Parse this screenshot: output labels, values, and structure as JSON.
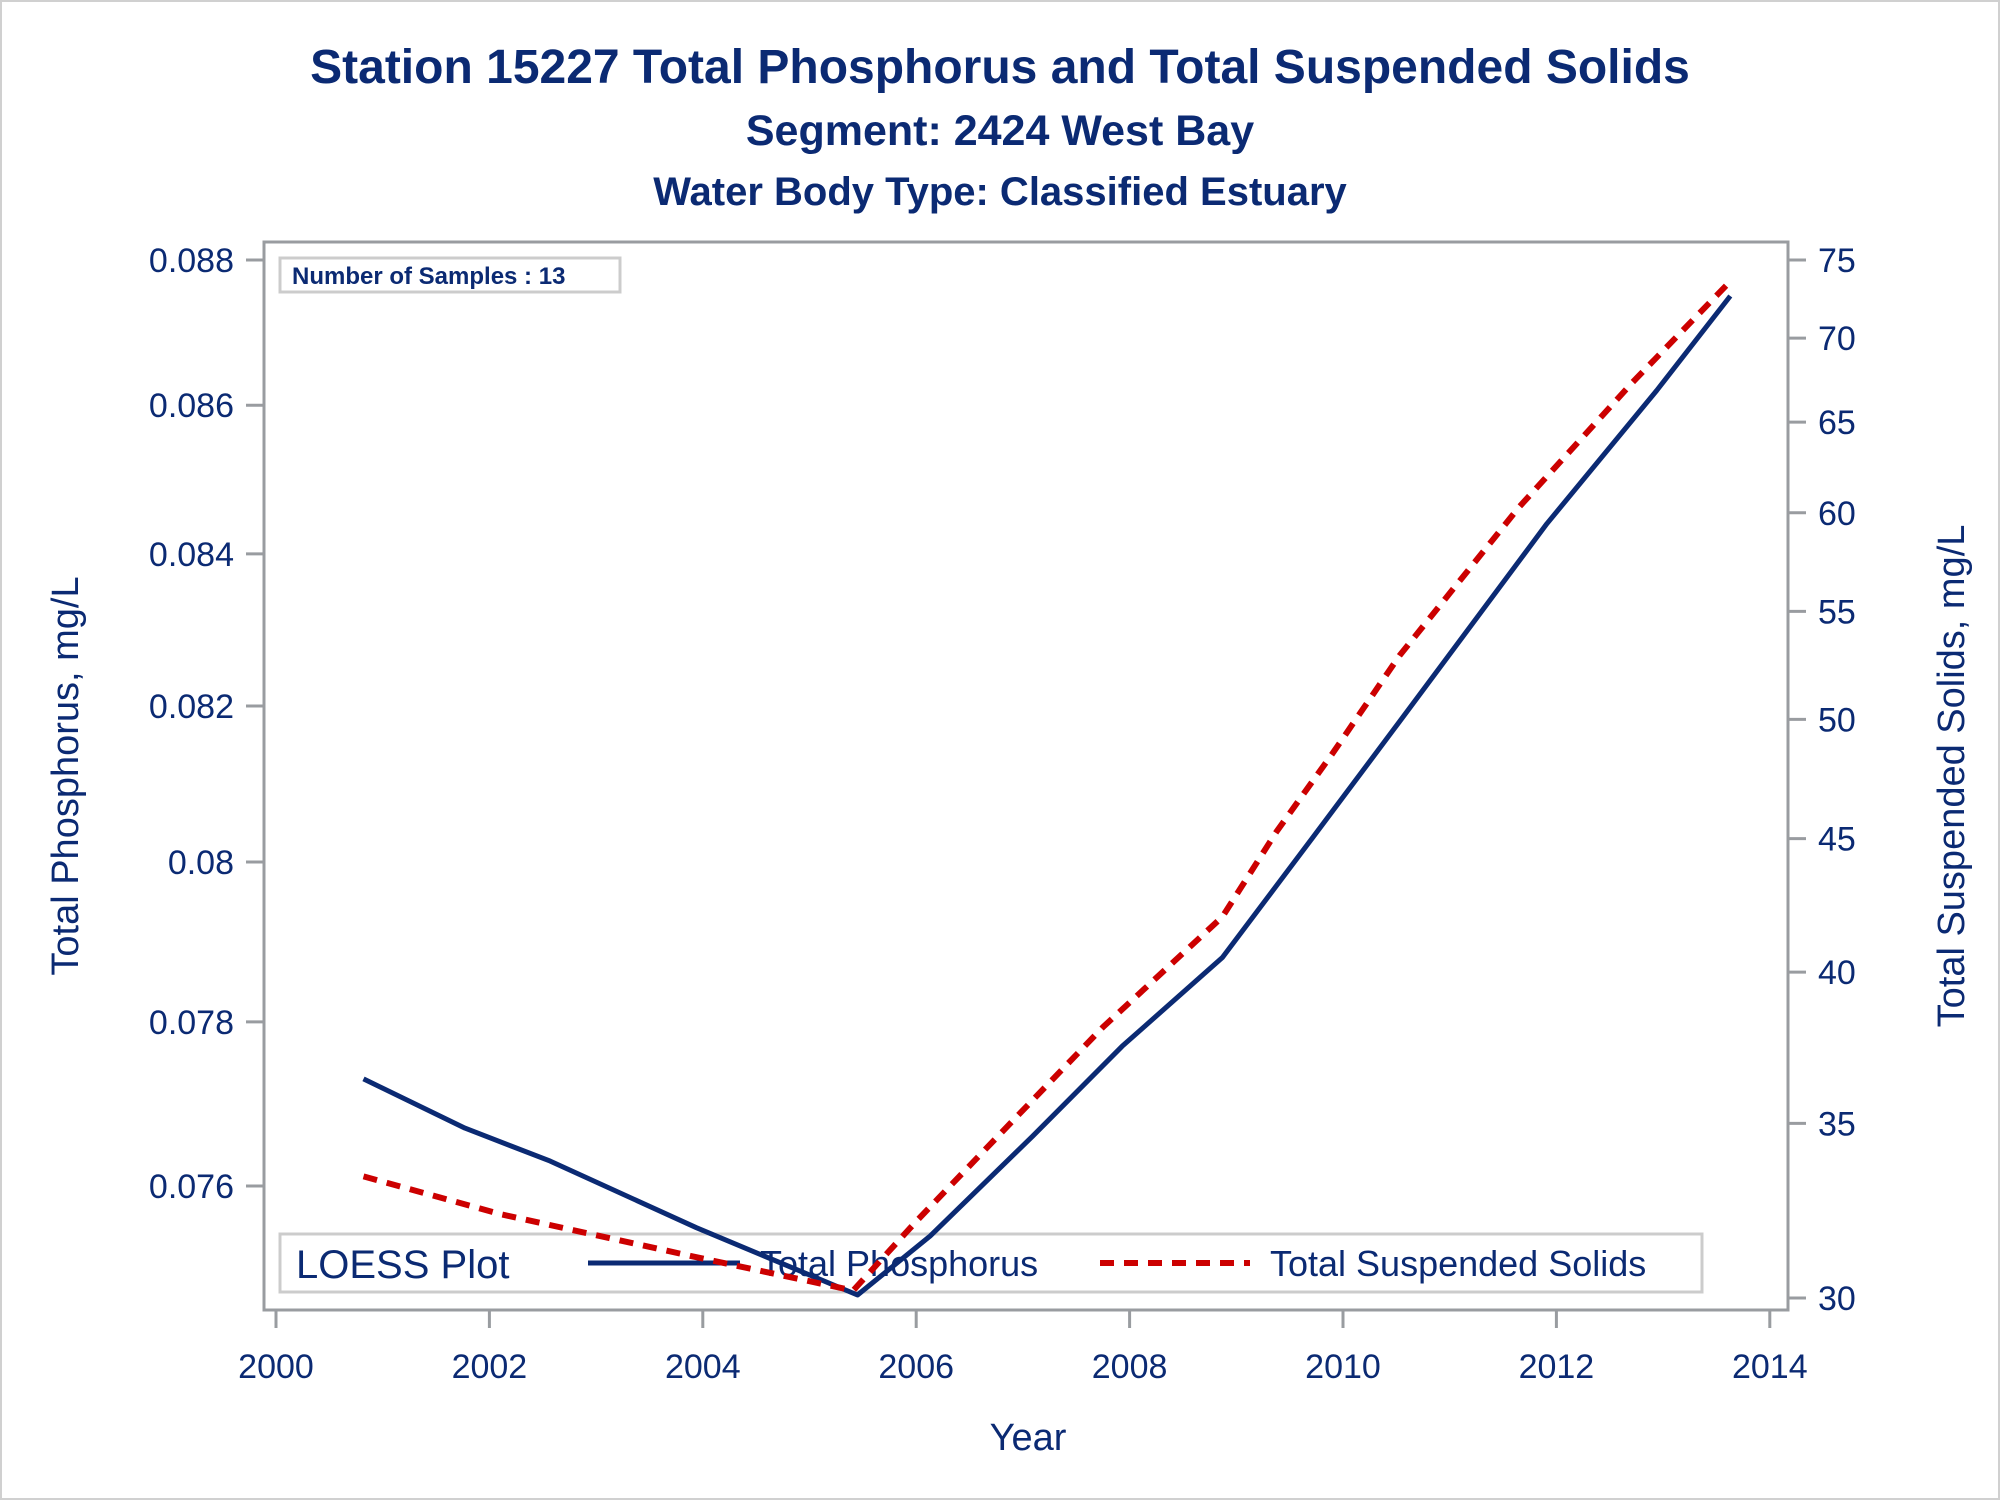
{
  "colors": {
    "text": "#0b2a73",
    "tp_line": "#0b2a73",
    "tss_line": "#cc0000",
    "frame": "#999ca0",
    "legend_border": "#cccccc"
  },
  "chart_data": {
    "type": "line",
    "title": "Station 15227  Total Phosphorus and Total Suspended Solids",
    "subtitle": "Segment: 2424  West Bay",
    "subtitle2": "Water Body Type: Classified Estuary",
    "xlabel": "Year",
    "ylabel": "Total Phosphorus, mg/L",
    "y2label": "Total Suspended Solids, mg/L",
    "xlim": [
      2000,
      2014
    ],
    "ylim": [
      0.0747,
      0.088
    ],
    "y2lim": [
      30,
      75
    ],
    "yscale": "log",
    "y2scale": "log",
    "x_ticks": [
      "2000",
      "2002",
      "2004",
      "2006",
      "2008",
      "2010",
      "2012",
      "2014"
    ],
    "y_ticks": [
      "0.088",
      "0.086",
      "0.084",
      "0.082",
      "0.08",
      "0.078",
      "0.076"
    ],
    "y2_ticks": [
      "75",
      "70",
      "65",
      "60",
      "55",
      "50",
      "45",
      "40",
      "35",
      "30"
    ],
    "grid": false,
    "annotation": "Number of Samples : 13",
    "legend": {
      "title": "LOESS Plot",
      "placement": "bottom-inside",
      "entries": [
        "Total Phosphorus",
        "Total Suspended Solids"
      ]
    },
    "series": [
      {
        "name": "Total Phosphorus",
        "axis": "left",
        "style": "solid",
        "x": [
          2000.82,
          2001.77,
          2002.57,
          2003.94,
          2005.45,
          2006.13,
          2007.09,
          2007.93,
          2008.87,
          2009.71,
          2010.53,
          2011.91,
          2012.94,
          2013.63
        ],
        "values": [
          0.0773,
          0.0767,
          0.0763,
          0.0755,
          0.0747,
          0.0754,
          0.0766,
          0.0777,
          0.0788,
          0.0803,
          0.0818,
          0.0844,
          0.0862,
          0.0875
        ]
      },
      {
        "name": "Total Suspended Solids",
        "axis": "right",
        "style": "dashed",
        "x": [
          2000.82,
          2002.11,
          2003.94,
          2005.41,
          2006.0,
          2006.94,
          2007.75,
          2008.87,
          2009.38,
          2009.9,
          2010.53,
          2011.65,
          2012.71,
          2013.63
        ],
        "values": [
          33.4,
          32.3,
          31.1,
          30.2,
          32.1,
          35.2,
          38.1,
          42.0,
          45.3,
          48.5,
          52.9,
          60.3,
          67.3,
          73.6
        ]
      }
    ]
  }
}
